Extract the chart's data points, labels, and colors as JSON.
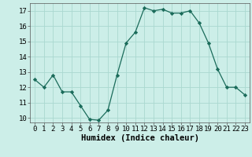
{
  "x": [
    0,
    1,
    2,
    3,
    4,
    5,
    6,
    7,
    8,
    9,
    10,
    11,
    12,
    13,
    14,
    15,
    16,
    17,
    18,
    19,
    20,
    21,
    22,
    23
  ],
  "y": [
    12.5,
    12.0,
    12.8,
    11.7,
    11.7,
    10.8,
    9.9,
    9.85,
    10.5,
    12.8,
    14.9,
    15.6,
    17.2,
    17.0,
    17.1,
    16.85,
    16.85,
    17.0,
    16.2,
    14.9,
    13.2,
    12.0,
    12.0,
    11.5
  ],
  "ylim": [
    9.7,
    17.5
  ],
  "yticks": [
    10,
    11,
    12,
    13,
    14,
    15,
    16,
    17
  ],
  "xticks": [
    0,
    1,
    2,
    3,
    4,
    5,
    6,
    7,
    8,
    9,
    10,
    11,
    12,
    13,
    14,
    15,
    16,
    17,
    18,
    19,
    20,
    21,
    22,
    23
  ],
  "xlabel": "Humidex (Indice chaleur)",
  "line_color": "#1a6b5a",
  "marker": "D",
  "marker_size": 2.2,
  "bg_color": "#cceee8",
  "grid_color": "#aad8d0",
  "xlabel_fontsize": 7.5,
  "tick_fontsize": 6.5
}
